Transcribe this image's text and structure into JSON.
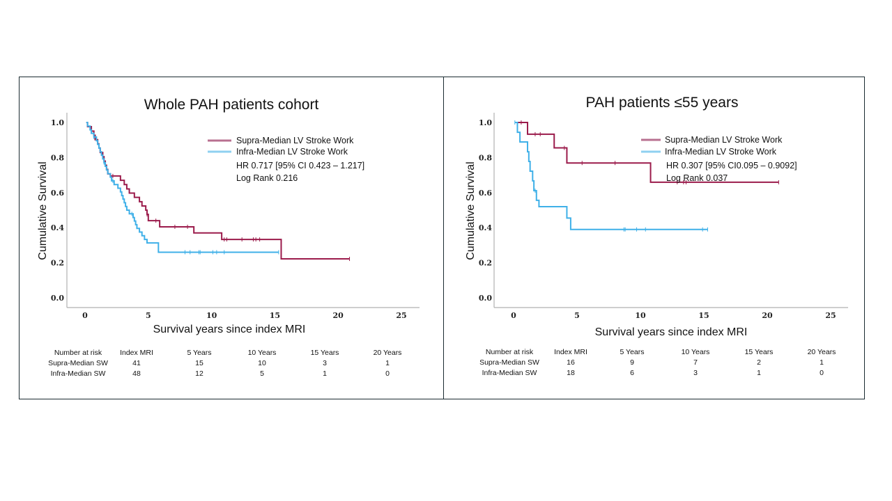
{
  "colors": {
    "supra": "#9b1b4b",
    "infra": "#3fb0e8",
    "supra_legend": "#b87090",
    "infra_legend": "#8fd0f0",
    "axis": "#b0b0b0"
  },
  "chart_data": [
    {
      "type": "line",
      "subtype": "kaplan-meier-step",
      "title": "Whole PAH patients cohort",
      "xlabel": "Survival years since index MRI",
      "ylabel": "Cumulative Survival",
      "xlim": [
        -1.5,
        26.5
      ],
      "ylim": [
        0,
        1.05
      ],
      "xticks": [
        "0",
        "5",
        "10",
        "15",
        "20",
        "25"
      ],
      "xtick_values": [
        0,
        5,
        10,
        15,
        20,
        25
      ],
      "yticks": [
        "0.0",
        "0.2",
        "0.4",
        "0.6",
        "0.8",
        "1.0"
      ],
      "ytick_values": [
        0,
        0.2,
        0.4,
        0.6,
        0.8,
        1.0
      ],
      "legend_position": "top-right",
      "legend": [
        "Supra-Median LV Stroke Work",
        "Infra-Median LV Stroke Work"
      ],
      "annotations": [
        "HR 0.717 [95% CI 0.423 – 1.217]",
        "Log Rank 0.216"
      ],
      "series": [
        {
          "name": "Supra-Median LV Stroke Work",
          "color_key": "supra",
          "steps": [
            [
              0.1,
              1.0
            ],
            [
              0.2,
              0.976
            ],
            [
              0.5,
              0.951
            ],
            [
              0.7,
              0.927
            ],
            [
              0.8,
              0.902
            ],
            [
              1.0,
              0.878
            ],
            [
              1.1,
              0.854
            ],
            [
              1.2,
              0.829
            ],
            [
              1.4,
              0.805
            ],
            [
              1.5,
              0.78
            ],
            [
              1.6,
              0.756
            ],
            [
              1.7,
              0.732
            ],
            [
              1.8,
              0.707
            ],
            [
              2.0,
              0.695
            ],
            [
              2.8,
              0.67
            ],
            [
              3.1,
              0.646
            ],
            [
              3.3,
              0.621
            ],
            [
              3.5,
              0.597
            ],
            [
              3.9,
              0.573
            ],
            [
              4.3,
              0.548
            ],
            [
              4.5,
              0.524
            ],
            [
              4.8,
              0.5
            ],
            [
              4.9,
              0.476
            ],
            [
              5.0,
              0.44
            ],
            [
              5.9,
              0.405
            ],
            [
              8.6,
              0.37
            ],
            [
              10.8,
              0.333
            ],
            [
              15.5,
              0.222
            ],
            [
              20.9,
              0.222
            ]
          ],
          "censored": [
            2.2,
            4.9,
            5.6,
            7.1,
            8.1,
            11.0,
            11.2,
            12.4,
            13.3,
            13.5,
            13.8,
            20.9
          ]
        },
        {
          "name": "Infra-Median LV Stroke Work",
          "color_key": "infra",
          "steps": [
            [
              0.1,
              1.0
            ],
            [
              0.2,
              0.979
            ],
            [
              0.4,
              0.958
            ],
            [
              0.5,
              0.938
            ],
            [
              0.7,
              0.917
            ],
            [
              0.9,
              0.896
            ],
            [
              1.0,
              0.875
            ],
            [
              1.1,
              0.854
            ],
            [
              1.2,
              0.833
            ],
            [
              1.3,
              0.813
            ],
            [
              1.4,
              0.792
            ],
            [
              1.5,
              0.771
            ],
            [
              1.6,
              0.75
            ],
            [
              1.7,
              0.729
            ],
            [
              1.8,
              0.708
            ],
            [
              2.0,
              0.688
            ],
            [
              2.1,
              0.667
            ],
            [
              2.3,
              0.646
            ],
            [
              2.6,
              0.625
            ],
            [
              2.8,
              0.604
            ],
            [
              2.9,
              0.583
            ],
            [
              3.0,
              0.563
            ],
            [
              3.1,
              0.542
            ],
            [
              3.2,
              0.521
            ],
            [
              3.3,
              0.5
            ],
            [
              3.5,
              0.479
            ],
            [
              3.8,
              0.458
            ],
            [
              3.9,
              0.438
            ],
            [
              4.0,
              0.417
            ],
            [
              4.1,
              0.396
            ],
            [
              4.3,
              0.375
            ],
            [
              4.5,
              0.354
            ],
            [
              4.7,
              0.333
            ],
            [
              4.9,
              0.313
            ],
            [
              5.8,
              0.26
            ],
            [
              15.3,
              0.26
            ]
          ],
          "censored": [
            0.7,
            1.5,
            2.2,
            3.7,
            7.9,
            8.3,
            9.0,
            9.1,
            10.1,
            10.4,
            11.0,
            15.3
          ]
        }
      ],
      "risk_table": {
        "header": [
          "Number at risk",
          "Index MRI",
          "5 Years",
          "10 Years",
          "15 Years",
          "20 Years"
        ],
        "rows": [
          {
            "label": "Supra-Median SW",
            "values": [
              "41",
              "15",
              "10",
              "3",
              "1"
            ]
          },
          {
            "label": "Infra-Median SW",
            "values": [
              "48",
              "12",
              "5",
              "1",
              "0"
            ]
          }
        ]
      }
    },
    {
      "type": "line",
      "subtype": "kaplan-meier-step",
      "title": "PAH patients ≤55 years",
      "xlabel": "Survival years since index MRI",
      "ylabel": "Cumulative Survival",
      "xlim": [
        -1.5,
        26.5
      ],
      "ylim": [
        0,
        1.05
      ],
      "xticks": [
        "0",
        "5",
        "10",
        "15",
        "20",
        "25"
      ],
      "xtick_values": [
        0,
        5,
        10,
        15,
        20,
        25
      ],
      "yticks": [
        "0.0",
        "0.2",
        "0.4",
        "0.6",
        "0.8",
        "1.0"
      ],
      "ytick_values": [
        0,
        0.2,
        0.4,
        0.6,
        0.8,
        1.0
      ],
      "legend_position": "top-right",
      "legend": [
        "Supra-Median LV Stroke Work",
        "Infra-Median LV Stroke Work"
      ],
      "annotations": [
        "HR 0.307 [95% CI0.095 – 0.9092]",
        "Log Rank 0.037"
      ],
      "series": [
        {
          "name": "Supra-Median LV Stroke Work",
          "color_key": "supra",
          "steps": [
            [
              0.1,
              1.0
            ],
            [
              1.1,
              0.933
            ],
            [
              3.2,
              0.855
            ],
            [
              4.2,
              0.769
            ],
            [
              10.8,
              0.659
            ],
            [
              20.9,
              0.659
            ]
          ],
          "censored": [
            0.6,
            1.7,
            2.1,
            4.0,
            5.4,
            8.0,
            12.9,
            13.4,
            13.6,
            20.9
          ]
        },
        {
          "name": "Infra-Median LV Stroke Work",
          "color_key": "infra",
          "steps": [
            [
              0.1,
              1.0
            ],
            [
              0.3,
              0.944
            ],
            [
              0.5,
              0.889
            ],
            [
              1.1,
              0.833
            ],
            [
              1.2,
              0.778
            ],
            [
              1.3,
              0.722
            ],
            [
              1.5,
              0.667
            ],
            [
              1.6,
              0.611
            ],
            [
              1.8,
              0.556
            ],
            [
              2.0,
              0.52
            ],
            [
              4.2,
              0.455
            ],
            [
              4.5,
              0.39
            ],
            [
              15.3,
              0.39
            ]
          ],
          "censored": [
            0.1,
            1.7,
            8.7,
            8.8,
            9.7,
            10.4,
            14.9,
            15.3
          ]
        }
      ],
      "risk_table": {
        "header": [
          "Number at risk",
          "Index MRI",
          "5 Years",
          "10 Years",
          "15 Years",
          "20 Years"
        ],
        "rows": [
          {
            "label": "Supra-Median SW",
            "values": [
              "16",
              "9",
              "7",
              "2",
              "1"
            ]
          },
          {
            "label": "Infra-Median SW",
            "values": [
              "18",
              "6",
              "3",
              "1",
              "0"
            ]
          }
        ]
      }
    }
  ]
}
